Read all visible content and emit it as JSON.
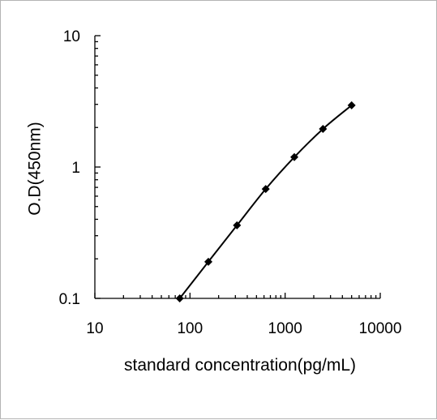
{
  "chart_data": {
    "type": "line",
    "title": "",
    "xlabel": "standard concentration(pg/mL)",
    "ylabel": "O.D(450nm)",
    "xscale": "log",
    "yscale": "log",
    "xlim": [
      10,
      10000
    ],
    "ylim": [
      0.1,
      10
    ],
    "xticks": [
      "10",
      "100",
      "1000",
      "10000"
    ],
    "yticks": [
      "0.1",
      "1",
      "10"
    ],
    "grid": false,
    "legend": "none",
    "colors": {
      "line": "#000000",
      "marker": "#000000"
    },
    "marker": "diamond",
    "series": [
      {
        "x": [
          78,
          156,
          312,
          625,
          1250,
          2500,
          5000
        ],
        "y": [
          0.1,
          0.19,
          0.36,
          0.68,
          1.19,
          1.95,
          2.95
        ]
      }
    ]
  }
}
